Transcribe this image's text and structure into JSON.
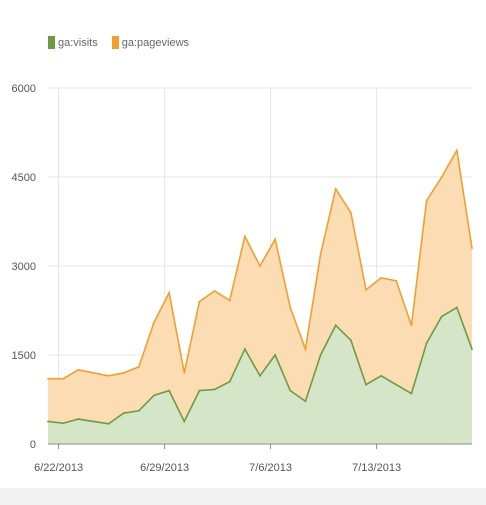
{
  "chart_data": {
    "type": "area",
    "legend_position": "top-left",
    "grid": true,
    "xlim": [
      0,
      40
    ],
    "ylim": [
      0,
      6000
    ],
    "y_ticks": [
      {
        "value": 0,
        "label": "0"
      },
      {
        "value": 1500,
        "label": "1500"
      },
      {
        "value": 3000,
        "label": "3000"
      },
      {
        "value": 4500,
        "label": "4500"
      },
      {
        "value": 6000,
        "label": "6000"
      }
    ],
    "x_ticks": [
      {
        "index": 1,
        "label": "6/22/2013"
      },
      {
        "index": 11,
        "label": "6/29/2013"
      },
      {
        "index": 21,
        "label": "7/6/2013"
      },
      {
        "index": 31,
        "label": "7/13/2013"
      }
    ],
    "series": [
      {
        "name": "ga:pageviews",
        "color": "#f0a030",
        "fill": "#fbdcb3",
        "values": [
          1100,
          1100,
          1250,
          1200,
          1150,
          1200,
          1300,
          2050,
          2550,
          1200,
          2400,
          2580,
          2420,
          3500,
          3000,
          3450,
          2300,
          1600,
          3200,
          4300,
          3900,
          2600,
          2800,
          2750,
          2000,
          4100,
          4500,
          4950,
          3300
        ]
      },
      {
        "name": "ga:visits",
        "color": "#6f9a43",
        "fill": "#d5e5c8",
        "values": [
          380,
          350,
          420,
          380,
          340,
          520,
          560,
          820,
          900,
          380,
          900,
          920,
          1050,
          1600,
          1150,
          1500,
          900,
          720,
          1500,
          2000,
          1750,
          1000,
          1150,
          1000,
          850,
          1700,
          2150,
          2300,
          1600
        ]
      }
    ]
  }
}
